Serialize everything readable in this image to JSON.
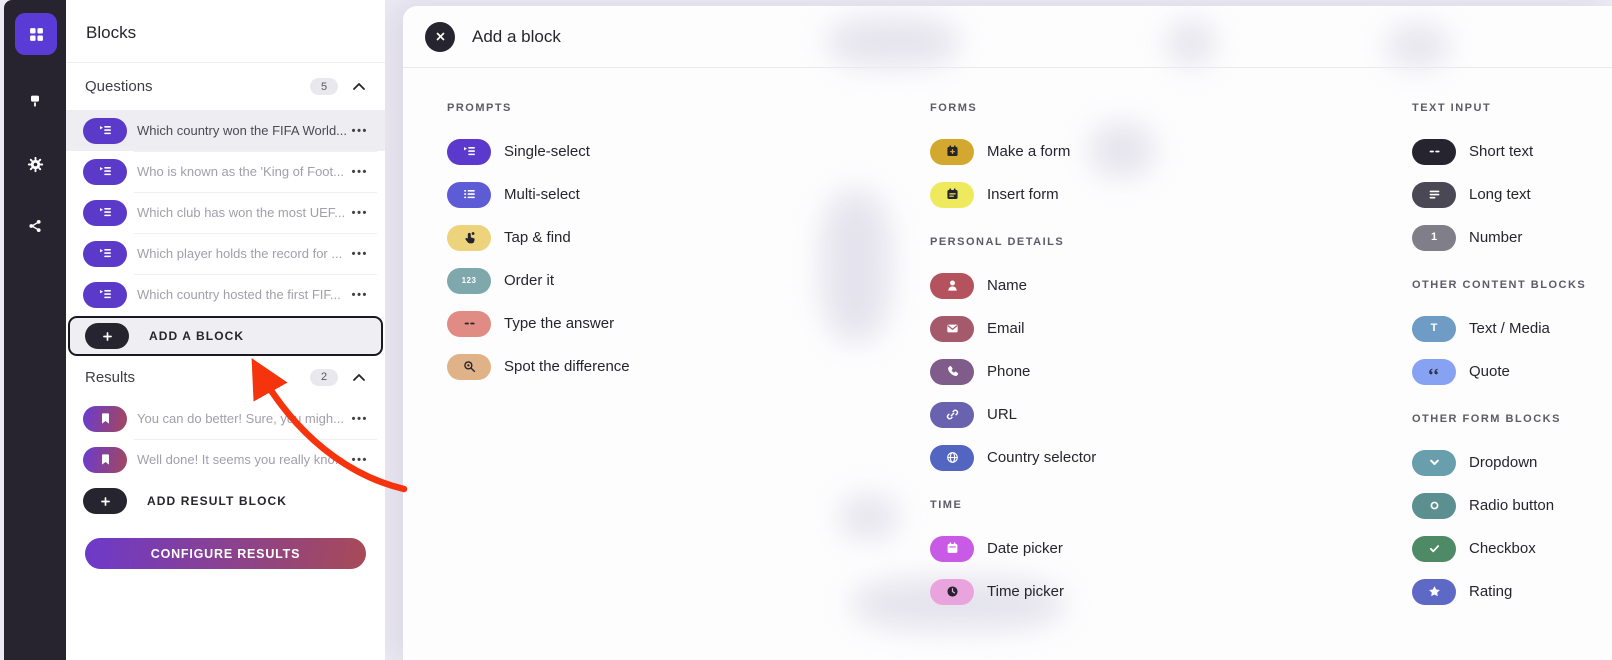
{
  "page": {
    "background": "#eceaf3"
  },
  "sidebar": {
    "background": "#272430",
    "active_color": "#5b3bd5",
    "items": [
      {
        "name": "blocks",
        "icon": "grid-icon",
        "active": true
      },
      {
        "name": "design",
        "icon": "paint-icon",
        "active": false
      },
      {
        "name": "settings",
        "icon": "gear-icon",
        "active": false
      },
      {
        "name": "share",
        "icon": "share-icon",
        "active": false
      }
    ]
  },
  "blocks_panel": {
    "title": "Blocks",
    "questions": {
      "label": "Questions",
      "count": "5",
      "item_color": "#5b3ac9",
      "items": [
        {
          "text": "Which country won the FIFA World...",
          "selected": true
        },
        {
          "text": "Who is known as the 'King of Foot...",
          "selected": false
        },
        {
          "text": "Which club has won the most UEF...",
          "selected": false
        },
        {
          "text": "Which player holds the record for ...",
          "selected": false
        },
        {
          "text": "Which country hosted the first FIF...",
          "selected": false
        }
      ]
    },
    "add_block": {
      "label": "ADD A BLOCK"
    },
    "results": {
      "label": "Results",
      "count": "2",
      "gradient": [
        "#6a3bcf",
        "#a4485c"
      ],
      "items": [
        {
          "text": "You can do better! Sure, you migh..."
        },
        {
          "text": "Well done! It seems you really kno..."
        }
      ]
    },
    "add_result": {
      "label": "ADD RESULT BLOCK"
    },
    "configure_button": {
      "label": "CONFIGURE RESULTS",
      "gradient": [
        "#6d39c9",
        "#a74a58"
      ]
    }
  },
  "modal": {
    "title": "Add a block",
    "columns": [
      {
        "sections": [
          {
            "title": "PROMPTS",
            "items": [
              {
                "label": "Single-select",
                "icon": "single-select-icon",
                "bg": "#5b39cc",
                "fg": "#ffffff"
              },
              {
                "label": "Multi-select",
                "icon": "multi-select-icon",
                "bg": "#5d5bd5",
                "fg": "#ffffff"
              },
              {
                "label": "Tap & find",
                "icon": "tap-icon",
                "bg": "#ecd37c",
                "fg": "#26242e"
              },
              {
                "label": "Order it",
                "icon": "order-icon",
                "bg": "#7fa8ad",
                "fg": "#ffffff"
              },
              {
                "label": "Type the answer",
                "icon": "dashes-icon",
                "bg": "#e08b84",
                "fg": "#26242e"
              },
              {
                "label": "Spot the difference",
                "icon": "magnifier-icon",
                "bg": "#dfb387",
                "fg": "#26242e"
              }
            ]
          }
        ]
      },
      {
        "sections": [
          {
            "title": "FORMS",
            "items": [
              {
                "label": "Make a form",
                "icon": "form-add-icon",
                "bg": "#d2a92e",
                "fg": "#26242e"
              },
              {
                "label": "Insert form",
                "icon": "form-icon",
                "bg": "#efe95e",
                "fg": "#26242e"
              }
            ]
          },
          {
            "title": "PERSONAL DETAILS",
            "items": [
              {
                "label": "Name",
                "icon": "person-icon",
                "bg": "#b4525d",
                "fg": "#ffffff"
              },
              {
                "label": "Email",
                "icon": "mail-icon",
                "bg": "#a55a6c",
                "fg": "#ffffff"
              },
              {
                "label": "Phone",
                "icon": "phone-icon",
                "bg": "#7f5c89",
                "fg": "#ffffff"
              },
              {
                "label": "URL",
                "icon": "link-icon",
                "bg": "#6862af",
                "fg": "#ffffff"
              },
              {
                "label": "Country selector",
                "icon": "globe-icon",
                "bg": "#5265c0",
                "fg": "#ffffff"
              }
            ]
          },
          {
            "title": "TIME",
            "items": [
              {
                "label": "Date picker",
                "icon": "calendar-icon",
                "bg": "#c95ae5",
                "fg": "#ffffff"
              },
              {
                "label": "Time picker",
                "icon": "clock-icon",
                "bg": "#eaa4dd",
                "fg": "#26242e"
              }
            ]
          }
        ]
      },
      {
        "sections": [
          {
            "title": "TEXT INPUT",
            "items": [
              {
                "label": "Short text",
                "icon": "dashes-icon",
                "bg": "#26242e",
                "fg": "#ffffff"
              },
              {
                "label": "Long text",
                "icon": "long-text-icon",
                "bg": "#4a4854",
                "fg": "#ffffff"
              },
              {
                "label": "Number",
                "icon": "number-icon",
                "bg": "#807e88",
                "fg": "#ffffff"
              }
            ]
          },
          {
            "title": "OTHER CONTENT BLOCKS",
            "items": [
              {
                "label": "Text / Media",
                "icon": "text-icon",
                "bg": "#6f9cc4",
                "fg": "#ffffff"
              },
              {
                "label": "Quote",
                "icon": "quote-icon",
                "bg": "#87a2f2",
                "fg": "#2b3346"
              }
            ]
          },
          {
            "title": "OTHER FORM BLOCKS",
            "items": [
              {
                "label": "Dropdown",
                "icon": "chevron-down-icon",
                "bg": "#699fad",
                "fg": "#ffffff"
              },
              {
                "label": "Radio button",
                "icon": "radio-icon",
                "bg": "#5c8f90",
                "fg": "#ffffff"
              },
              {
                "label": "Checkbox",
                "icon": "check-icon",
                "bg": "#4f8a66",
                "fg": "#ffffff"
              },
              {
                "label": "Rating",
                "icon": "star-icon",
                "bg": "#5e69c6",
                "fg": "#ffffff"
              }
            ]
          }
        ]
      }
    ]
  },
  "annotation": {
    "arrow_color": "#f5340e"
  }
}
